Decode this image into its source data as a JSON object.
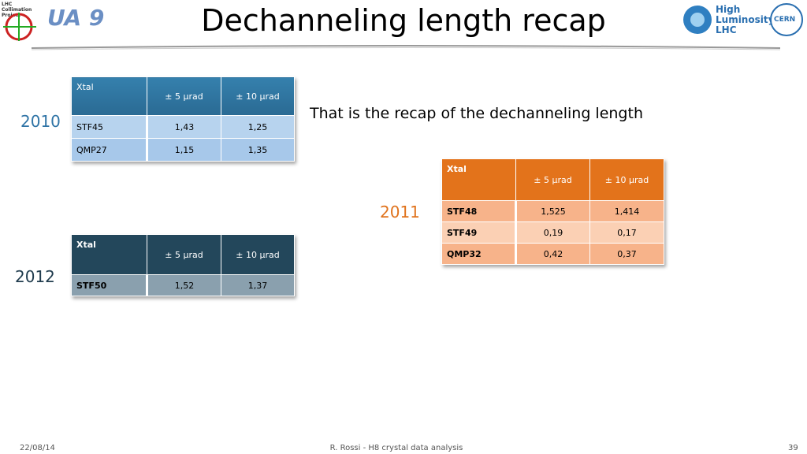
{
  "header": {
    "title": "Dechanneling length recap",
    "logos": [
      "LHC Collimation Project",
      "UA 9",
      "High Luminosity LHC",
      "CERN"
    ]
  },
  "note": "That is the recap of the dechanneling length",
  "tables": [
    {
      "year": "2010",
      "header": [
        "Xtal",
        "± 5 µrad",
        "± 10 µrad"
      ],
      "rows": [
        [
          "STF45",
          "1,43",
          "1,25"
        ],
        [
          "QMP27",
          "1,15",
          "1,35"
        ]
      ]
    },
    {
      "year": "2011",
      "header": [
        "Xtal",
        "± 5 µrad",
        "± 10 µrad"
      ],
      "rows": [
        [
          "STF48",
          "1,525",
          "1,414"
        ],
        [
          "STF49",
          "0,19",
          "0,17"
        ],
        [
          "QMP32",
          "0,42",
          "0,37"
        ]
      ]
    },
    {
      "year": "2012",
      "header": [
        "Xtal",
        "± 5 µrad",
        "± 10 µrad"
      ],
      "rows": [
        [
          "STF50",
          "1,52",
          "1,37"
        ]
      ]
    }
  ],
  "footer": {
    "date": "22/08/14",
    "center": "R. Rossi - H8 crystal data analysis",
    "page": "39"
  }
}
